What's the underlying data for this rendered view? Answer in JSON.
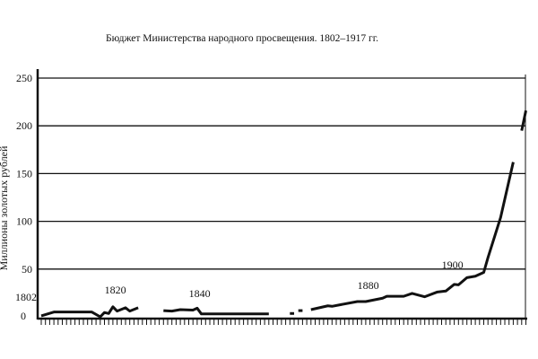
{
  "chart_data": {
    "type": "line",
    "title": "Бюджет Министерства народного просвещения. 1802–1917 гг.",
    "xlabel": "",
    "ylabel": "Миллионы золотых рублей",
    "xlim": [
      1802,
      1917
    ],
    "ylim": [
      0,
      250
    ],
    "yticks": [
      0,
      50,
      100,
      150,
      200,
      250
    ],
    "grid": true,
    "annotations": [
      "1802",
      "1820",
      "1840",
      "1880",
      "1900"
    ],
    "annotation_years": [
      1802,
      1820,
      1840,
      1880,
      1900
    ],
    "color": "#111111",
    "segments": [
      [
        [
          1802,
          1
        ],
        [
          1805,
          5
        ],
        [
          1811,
          5
        ],
        [
          1814,
          5
        ],
        [
          1816,
          0
        ],
        [
          1817,
          4.5
        ],
        [
          1818,
          3.5
        ],
        [
          1819,
          10.5
        ],
        [
          1820,
          6
        ],
        [
          1822,
          9.5
        ],
        [
          1823,
          6
        ],
        [
          1825,
          9.5
        ]
      ],
      [
        [
          1831,
          6.5
        ],
        [
          1833,
          6
        ],
        [
          1835,
          7.5
        ],
        [
          1838,
          7
        ],
        [
          1839,
          9
        ],
        [
          1840,
          3
        ],
        [
          1856,
          3
        ]
      ],
      [
        [
          1861,
          3.5
        ],
        [
          1862,
          3.5
        ]
      ],
      [
        [
          1863,
          6.5
        ],
        [
          1864,
          6.5
        ]
      ],
      [
        [
          1866,
          7.5
        ],
        [
          1870,
          11.5
        ],
        [
          1871,
          11
        ],
        [
          1877,
          16
        ],
        [
          1879,
          16
        ],
        [
          1883,
          19.5
        ],
        [
          1884,
          21.5
        ],
        [
          1888,
          21.5
        ],
        [
          1890,
          24.5
        ],
        [
          1893,
          21
        ],
        [
          1896,
          26
        ],
        [
          1898,
          27
        ],
        [
          1900,
          34
        ],
        [
          1901,
          33.5
        ],
        [
          1903,
          41
        ],
        [
          1905,
          42.5
        ],
        [
          1907,
          46.5
        ],
        [
          1908,
          62
        ],
        [
          1911,
          104
        ],
        [
          1914,
          162
        ]
      ],
      [
        [
          1916,
          195
        ],
        [
          1917,
          216
        ]
      ]
    ]
  }
}
